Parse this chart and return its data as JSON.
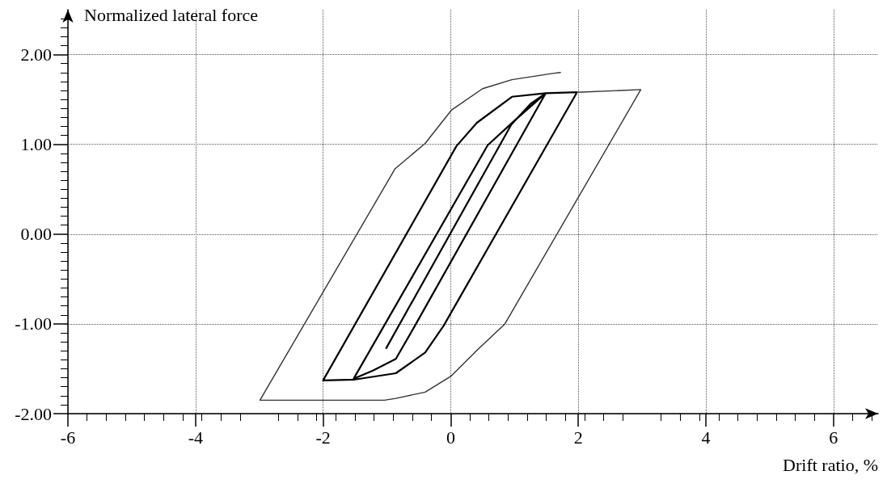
{
  "chart_data": {
    "type": "line",
    "xlabel": "Drift ratio, %",
    "ylabel": "Normalized lateral force",
    "xlim": [
      -6,
      6.7
    ],
    "ylim": [
      -2,
      2.5
    ],
    "xticks": [
      -6,
      -4,
      -2,
      0,
      2,
      4,
      6
    ],
    "yticks": [
      {
        "value": -2,
        "label": "-2.00"
      },
      {
        "value": -1,
        "label": "-1.00"
      },
      {
        "value": 0,
        "label": "0.00"
      },
      {
        "value": 1,
        "label": "1.00"
      },
      {
        "value": 2,
        "label": "2.00"
      }
    ],
    "grid": true,
    "marker": "none",
    "line_style": "solid",
    "series": [
      {
        "color": "#000000",
        "x": [
          -1.01,
          0.95,
          1.25,
          1.49,
          -0.56,
          -0.86,
          -1.22,
          -1.52,
          0.58,
          1.01,
          1.49,
          1.98,
          -0.11,
          -0.4,
          -0.86,
          -1.5,
          -2.0,
          0.09,
          0.41,
          0.96,
          1.49,
          1.98
        ],
        "values": [
          -1.27,
          1.22,
          1.45,
          1.57,
          -1.02,
          -1.39,
          -1.52,
          -1.61,
          0.99,
          1.27,
          1.57,
          1.58,
          -1.02,
          -1.32,
          -1.55,
          -1.62,
          -1.63,
          0.98,
          1.24,
          1.53,
          1.57,
          1.58
        ]
      },
      {
        "color": "#333333",
        "x": [
          1.98,
          2.98,
          0.85,
          0.42,
          0.01,
          -0.4,
          -0.86,
          -1.04,
          -2.99,
          -0.87,
          -0.4,
          0.01,
          0.5,
          0.96,
          1.6,
          1.72
        ],
        "values": [
          1.58,
          1.61,
          -1.0,
          -1.29,
          -1.58,
          -1.76,
          -1.83,
          -1.85,
          -1.85,
          0.73,
          1.01,
          1.38,
          1.62,
          1.72,
          1.79,
          1.8
        ]
      }
    ]
  }
}
